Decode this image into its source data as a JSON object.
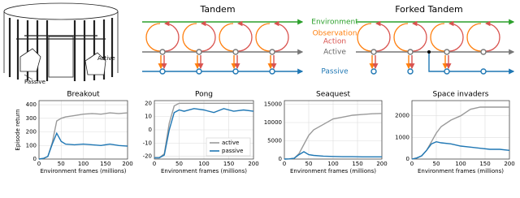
{
  "illustration": {
    "passive_label": "Passive",
    "active_label": "Active"
  },
  "diagram": {
    "tandem_title": "Tandem",
    "forked_title": "Forked Tandem",
    "environment": "Environment",
    "observation": "Observation",
    "action": "Action",
    "active": "Active",
    "passive": "Passive"
  },
  "chart_data": [
    {
      "type": "line",
      "title": "Breakout",
      "ylabel": "Episode return",
      "xlabel": "Environment frames (millions)",
      "x": [
        0,
        10,
        20,
        30,
        40,
        50,
        60,
        80,
        100,
        120,
        140,
        160,
        180,
        200
      ],
      "xlim": [
        0,
        200
      ],
      "xticks": [
        0,
        50,
        100,
        150,
        200
      ],
      "ylim": [
        0,
        430
      ],
      "yticks": [
        0,
        100,
        200,
        300,
        400
      ],
      "grid": true,
      "series": [
        {
          "name": "active",
          "color": "#9a9a9a",
          "values": [
            0,
            5,
            20,
            120,
            280,
            300,
            310,
            320,
            330,
            335,
            330,
            340,
            335,
            340
          ]
        },
        {
          "name": "passive",
          "color": "#1f77b4",
          "values": [
            0,
            5,
            20,
            110,
            190,
            130,
            110,
            105,
            110,
            105,
            100,
            110,
            100,
            95
          ]
        }
      ]
    },
    {
      "type": "line",
      "title": "Pong",
      "xlabel": "Environment frames (millions)",
      "x": [
        0,
        10,
        20,
        30,
        40,
        50,
        60,
        80,
        100,
        120,
        140,
        160,
        180,
        200
      ],
      "xlim": [
        0,
        200
      ],
      "xticks": [
        0,
        50,
        100,
        150,
        200
      ],
      "ylim": [
        -22,
        22
      ],
      "yticks": [
        -20,
        -10,
        0,
        10,
        20
      ],
      "grid": true,
      "legend": "lower right",
      "series": [
        {
          "name": "active",
          "color": "#9a9a9a",
          "values": [
            -21,
            -21,
            -18,
            5,
            18,
            20,
            20,
            20,
            20,
            20,
            20,
            20,
            20,
            20
          ]
        },
        {
          "name": "passive",
          "color": "#1f77b4",
          "values": [
            -21,
            -21,
            -19,
            0,
            13,
            15,
            14,
            16,
            15,
            13,
            16,
            14,
            15,
            14
          ]
        }
      ]
    },
    {
      "type": "line",
      "title": "Seaquest",
      "xlabel": "Environment frames (millions)",
      "x": [
        0,
        10,
        20,
        30,
        40,
        50,
        60,
        80,
        100,
        120,
        140,
        160,
        180,
        200
      ],
      "xlim": [
        0,
        200
      ],
      "xticks": [
        0,
        50,
        100,
        150,
        200
      ],
      "ylim": [
        0,
        16000
      ],
      "yticks": [
        0,
        5000,
        10000,
        15000
      ],
      "grid": true,
      "series": [
        {
          "name": "active",
          "color": "#9a9a9a",
          "values": [
            0,
            50,
            200,
            1500,
            4000,
            6500,
            8000,
            9500,
            11000,
            11500,
            12000,
            12200,
            12400,
            12500
          ]
        },
        {
          "name": "passive",
          "color": "#1f77b4",
          "values": [
            0,
            50,
            200,
            1200,
            2000,
            1200,
            1000,
            800,
            700,
            650,
            650,
            600,
            600,
            600
          ]
        }
      ]
    },
    {
      "type": "line",
      "title": "Space invaders",
      "xlabel": "Environment frames (millions)",
      "x": [
        0,
        10,
        20,
        30,
        40,
        50,
        60,
        80,
        100,
        120,
        140,
        160,
        180,
        200
      ],
      "xlim": [
        0,
        200
      ],
      "xticks": [
        0,
        50,
        100,
        150,
        200
      ],
      "ylim": [
        0,
        2700
      ],
      "yticks": [
        0,
        1000,
        2000
      ],
      "grid": true,
      "series": [
        {
          "name": "active",
          "color": "#9a9a9a",
          "values": [
            0,
            50,
            150,
            400,
            800,
            1200,
            1500,
            1800,
            2000,
            2300,
            2400,
            2400,
            2400,
            2400
          ]
        },
        {
          "name": "passive",
          "color": "#1f77b4",
          "values": [
            0,
            50,
            150,
            400,
            700,
            800,
            750,
            700,
            600,
            550,
            500,
            450,
            450,
            400
          ]
        }
      ]
    }
  ]
}
